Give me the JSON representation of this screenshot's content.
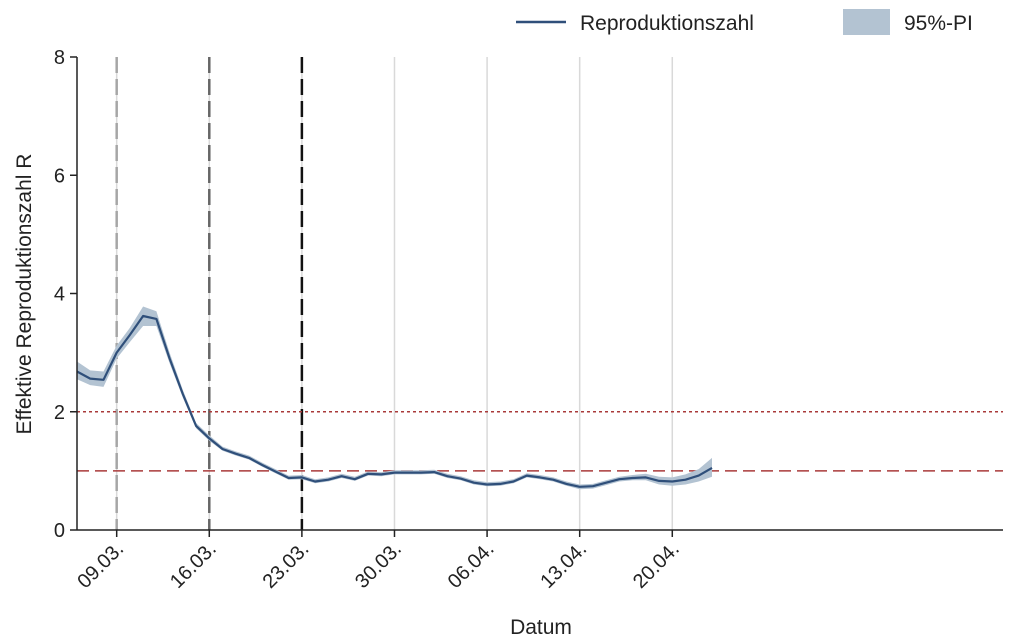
{
  "chart_data": {
    "type": "line",
    "xlabel": "Datum",
    "ylabel": "Effektive Reproduktionszahl R",
    "ylim": [
      0,
      8
    ],
    "yticks": [
      0,
      2,
      4,
      6,
      8
    ],
    "xlim_days": [
      6,
      76
    ],
    "x_ticks": [
      {
        "day": 9,
        "label": "09.03."
      },
      {
        "day": 16,
        "label": "16.03."
      },
      {
        "day": 23,
        "label": "23.03."
      },
      {
        "day": 30,
        "label": "30.03."
      },
      {
        "day": 37,
        "label": "06.04."
      },
      {
        "day": 44,
        "label": "13.04."
      },
      {
        "day": 51,
        "label": "20.04."
      }
    ],
    "grid": "vertical",
    "legend_position": "top-right",
    "legend": {
      "line_label": "Reproduktionszahl",
      "band_label": "95%-PI"
    },
    "colors": {
      "line": "#2f4f7a",
      "band": "#b3c3d2",
      "threshold": "#a93a3a",
      "grid": "#d9d9d9"
    },
    "reference_lines": [
      {
        "type": "vertical",
        "day": 9,
        "style": "dashed",
        "color": "#a6a6a6"
      },
      {
        "type": "vertical",
        "day": 16,
        "style": "dashed",
        "color": "#666666"
      },
      {
        "type": "vertical",
        "day": 23,
        "style": "dashed",
        "color": "#111111"
      },
      {
        "type": "horizontal",
        "y": 2,
        "style": "dotted",
        "color": "#a93a3a"
      },
      {
        "type": "horizontal",
        "y": 1,
        "style": "dashed",
        "color": "#a93a3a"
      }
    ],
    "series": [
      {
        "name": "Reproduktionszahl",
        "days": [
          6,
          7,
          8,
          9,
          10,
          11,
          12,
          13,
          14,
          15,
          16,
          17,
          18,
          19,
          20,
          21,
          22,
          23,
          24,
          25,
          26,
          27,
          28,
          29,
          30,
          31,
          32,
          33,
          34,
          35,
          36,
          37,
          38,
          39,
          40,
          41,
          42,
          43,
          44,
          45,
          46,
          47,
          48,
          49,
          50,
          51,
          52,
          53,
          54
        ],
        "values": [
          2.68,
          2.56,
          2.54,
          3.0,
          3.3,
          3.62,
          3.57,
          2.9,
          2.3,
          1.76,
          1.55,
          1.37,
          1.29,
          1.22,
          1.1,
          0.99,
          0.88,
          0.89,
          0.82,
          0.85,
          0.91,
          0.86,
          0.95,
          0.94,
          0.97,
          0.97,
          0.97,
          0.98,
          0.91,
          0.87,
          0.8,
          0.77,
          0.78,
          0.82,
          0.92,
          0.89,
          0.85,
          0.78,
          0.73,
          0.74,
          0.8,
          0.86,
          0.88,
          0.89,
          0.83,
          0.82,
          0.85,
          0.92,
          1.05
        ],
        "lower": [
          2.55,
          2.45,
          2.42,
          2.9,
          3.18,
          3.45,
          3.45,
          2.82,
          2.24,
          1.72,
          1.51,
          1.34,
          1.26,
          1.19,
          1.07,
          0.96,
          0.85,
          0.86,
          0.79,
          0.82,
          0.88,
          0.83,
          0.92,
          0.91,
          0.94,
          0.94,
          0.94,
          0.95,
          0.88,
          0.84,
          0.77,
          0.74,
          0.75,
          0.79,
          0.89,
          0.86,
          0.82,
          0.75,
          0.69,
          0.7,
          0.76,
          0.82,
          0.84,
          0.84,
          0.77,
          0.75,
          0.77,
          0.82,
          0.9
        ],
        "upper": [
          2.85,
          2.7,
          2.68,
          3.12,
          3.42,
          3.78,
          3.7,
          3.0,
          2.37,
          1.81,
          1.6,
          1.41,
          1.33,
          1.26,
          1.14,
          1.03,
          0.92,
          0.93,
          0.86,
          0.89,
          0.95,
          0.9,
          0.99,
          0.98,
          1.01,
          1.01,
          1.01,
          1.02,
          0.95,
          0.91,
          0.84,
          0.81,
          0.82,
          0.86,
          0.96,
          0.93,
          0.89,
          0.82,
          0.77,
          0.78,
          0.84,
          0.9,
          0.93,
          0.95,
          0.9,
          0.89,
          0.94,
          1.03,
          1.22
        ]
      }
    ]
  }
}
